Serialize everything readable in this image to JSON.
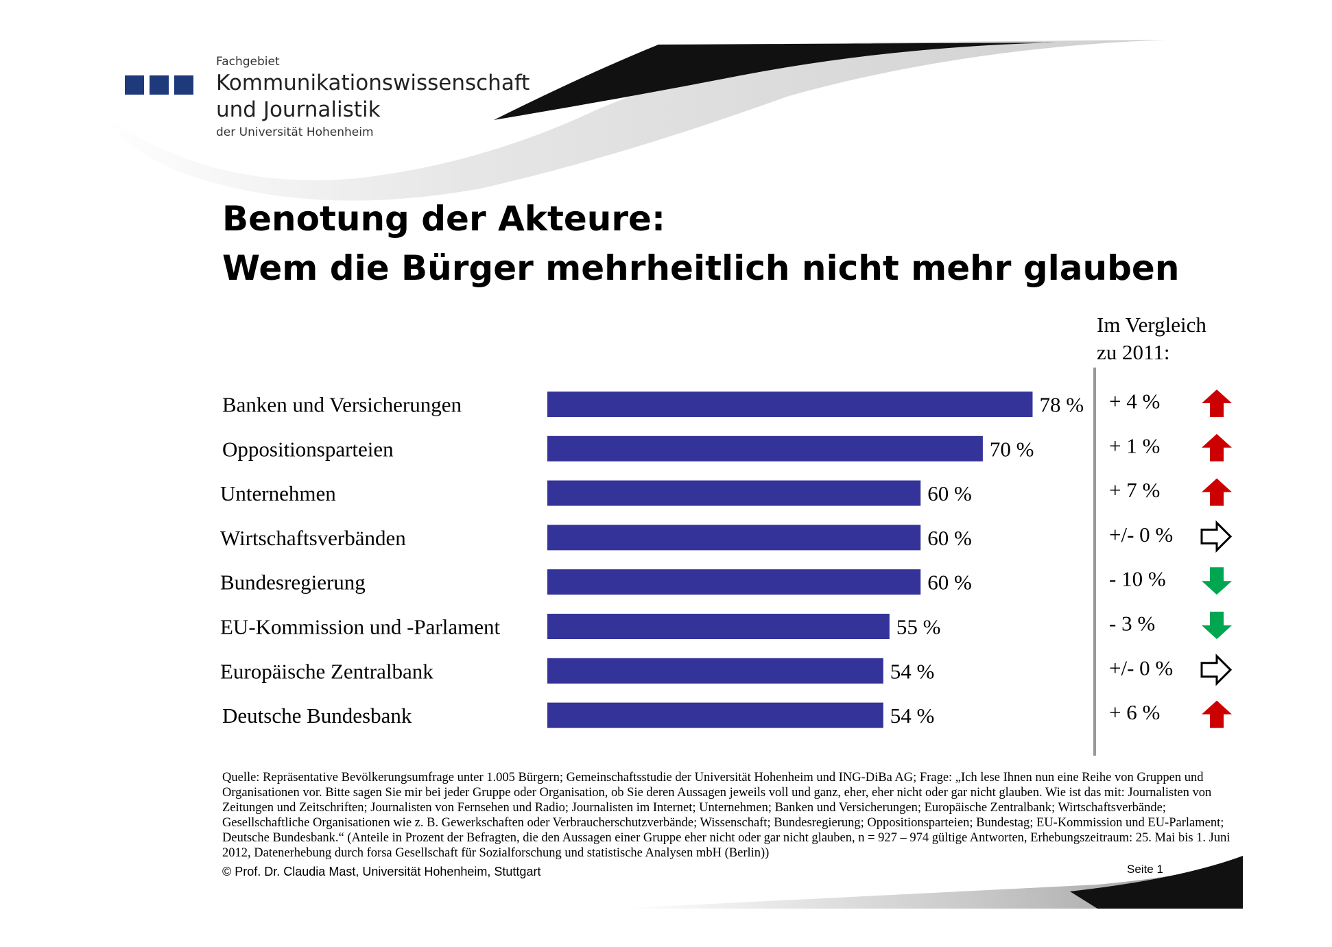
{
  "header": {
    "fachgebiet": "Fachgebiet",
    "org_line1": "Kommunikationswissenschaft",
    "org_line2": "und Journalistik",
    "org_line3": "der Universität Hohenheim"
  },
  "title_line1": "Benotung der Akteure:",
  "title_line2": "Wem die Bürger mehrheitlich nicht mehr glauben",
  "comparison_header_line1": "Im Vergleich",
  "comparison_header_line2": "zu 2011:",
  "colors": {
    "bar": "#333399",
    "up": "#cc0000",
    "down": "#00a650",
    "neutral": "#000000"
  },
  "chart_data": {
    "type": "bar",
    "orientation": "horizontal",
    "categories": [
      "Banken und Versicherungen",
      "Oppositionsparteien",
      "Unternehmen",
      "Wirtschaftsverbänden",
      "Bundesregierung",
      "EU-Kommission und -Parlament",
      "Europäische Zentralbank",
      "Deutsche Bundesbank"
    ],
    "values": [
      78,
      70,
      60,
      60,
      60,
      55,
      54,
      54
    ],
    "value_labels": [
      "78 %",
      "70 %",
      "60 %",
      "60 %",
      "60 %",
      "55 %",
      "54 %",
      "54 %"
    ],
    "comparison": [
      "+ 4 %",
      "+ 1 %",
      "+ 7 %",
      "+/- 0 %",
      "- 10 %",
      "- 3 %",
      "+/- 0 %",
      "+ 6 %"
    ],
    "trend_icons": [
      "up-arrow-icon",
      "up-arrow-icon",
      "up-arrow-icon",
      "right-arrow-icon",
      "down-arrow-icon",
      "down-arrow-icon",
      "right-arrow-icon",
      "up-arrow-icon"
    ],
    "xlim": [
      0,
      100
    ]
  },
  "source_text": "Quelle: Repräsentative Bevölkerungsumfrage unter 1.005 Bürgern; Gemeinschaftsstudie der Universität Hohenheim und ING-DiBa AG; Frage: „Ich lese Ihnen nun eine Reihe von Gruppen und Organisationen vor. Bitte sagen Sie mir bei jeder Gruppe oder Organisation, ob Sie deren Aussagen jeweils voll und ganz, eher, eher nicht oder gar nicht glauben. Wie ist das mit: Journalisten von Zeitungen und Zeitschriften; Journalisten von Fernsehen und Radio; Journalisten im Internet; Unternehmen; Banken und Versicherungen; Europäische Zentralbank; Wirtschaftsverbände; Gesellschaftliche Organisationen wie z. B. Gewerkschaften oder Verbraucherschutzverbände; Wissenschaft; Bundesregierung; Oppositionsparteien; Bundestag; EU-Kommission und EU-Parlament; Deutsche Bundesbank.“ (Anteile in Prozent der Befragten, die den Aussagen einer Gruppe eher nicht oder gar nicht glauben, n = 927 – 974 gültige Antworten, Erhebungszeitraum: 25. Mai bis 1. Juni 2012, Datenerhebung durch forsa Gesellschaft für Sozialforschung und statistische Analysen mbH (Berlin))",
  "copyright": "© Prof. Dr. Claudia Mast, Universität Hohenheim, Stuttgart",
  "page_label": "Seite  1"
}
